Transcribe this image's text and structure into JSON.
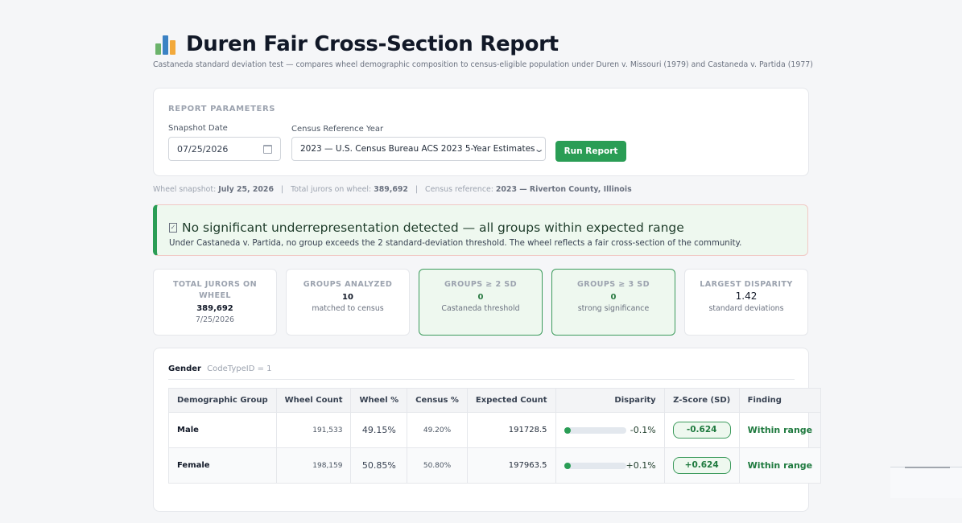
{
  "header": {
    "title": "Duren Fair Cross-Section Report",
    "subtitle": "Castaneda standard deviation test — compares wheel demographic composition to census-eligible population under Duren v. Missouri (1979) and Castaneda v. Partida (1977)",
    "icon": "bar-chart-icon"
  },
  "params": {
    "heading": "REPORT PARAMETERS",
    "snapshot_label": "Snapshot Date",
    "snapshot_value": "07/25/2026",
    "census_label": "Census Reference Year",
    "census_value": "2023 — U.S. Census Bureau ACS 2023 5-Year Estimates",
    "run_label": "Run Report"
  },
  "snapshot_line": {
    "wheel_label": "Wheel snapshot:",
    "wheel_value": "July 25, 2026",
    "total_label": "Total jurors on wheel:",
    "total_value": "389,692",
    "census_label": "Census reference:",
    "census_value": "2023 — Riverton County, Illinois"
  },
  "alert": {
    "title": "No significant underrepresentation detected — all groups within expected range",
    "body": "Under Castaneda v. Partida, no group exceeds the 2 standard-deviation threshold. The wheel reflects a fair cross-section of the community.",
    "accent": "#2a9d55"
  },
  "stats": [
    {
      "label": "TOTAL JURORS ON WHEEL",
      "value": "389,692",
      "sub": "7/25/2026"
    },
    {
      "label": "GROUPS ANALYZED",
      "value": "10",
      "sub": "matched to census"
    },
    {
      "label": "GROUPS ≥ 2 SD",
      "value": "0",
      "sub": "Castaneda threshold"
    },
    {
      "label": "GROUPS ≥ 3 SD",
      "value": "0",
      "sub": "strong significance"
    },
    {
      "label": "LARGEST DISPARITY",
      "value": "1.42",
      "sub": "standard deviations"
    }
  ],
  "table": {
    "section_title": "Gender",
    "section_code": "CodeTypeID = 1",
    "columns": [
      "Demographic Group",
      "Wheel Count",
      "Wheel %",
      "Census %",
      "Expected Count",
      "Disparity",
      "Z-Score (SD)",
      "Finding"
    ],
    "rows": [
      {
        "group": "Male",
        "wheel_count": "191,533",
        "wheel_pct": "49.15%",
        "census_pct": "49.20%",
        "expected": "191728.5",
        "disparity": "-0.1%",
        "disparity_fraction": 0.1,
        "z": "-0.624",
        "finding": "Within range"
      },
      {
        "group": "Female",
        "wheel_count": "198,159",
        "wheel_pct": "50.85%",
        "census_pct": "50.80%",
        "expected": "197963.5",
        "disparity": "+0.1%",
        "disparity_fraction": 0.1,
        "z": "+0.624",
        "finding": "Within range"
      }
    ]
  },
  "colors": {
    "brand_green": "#2a9d55",
    "within_range": "#1f7a3f"
  }
}
